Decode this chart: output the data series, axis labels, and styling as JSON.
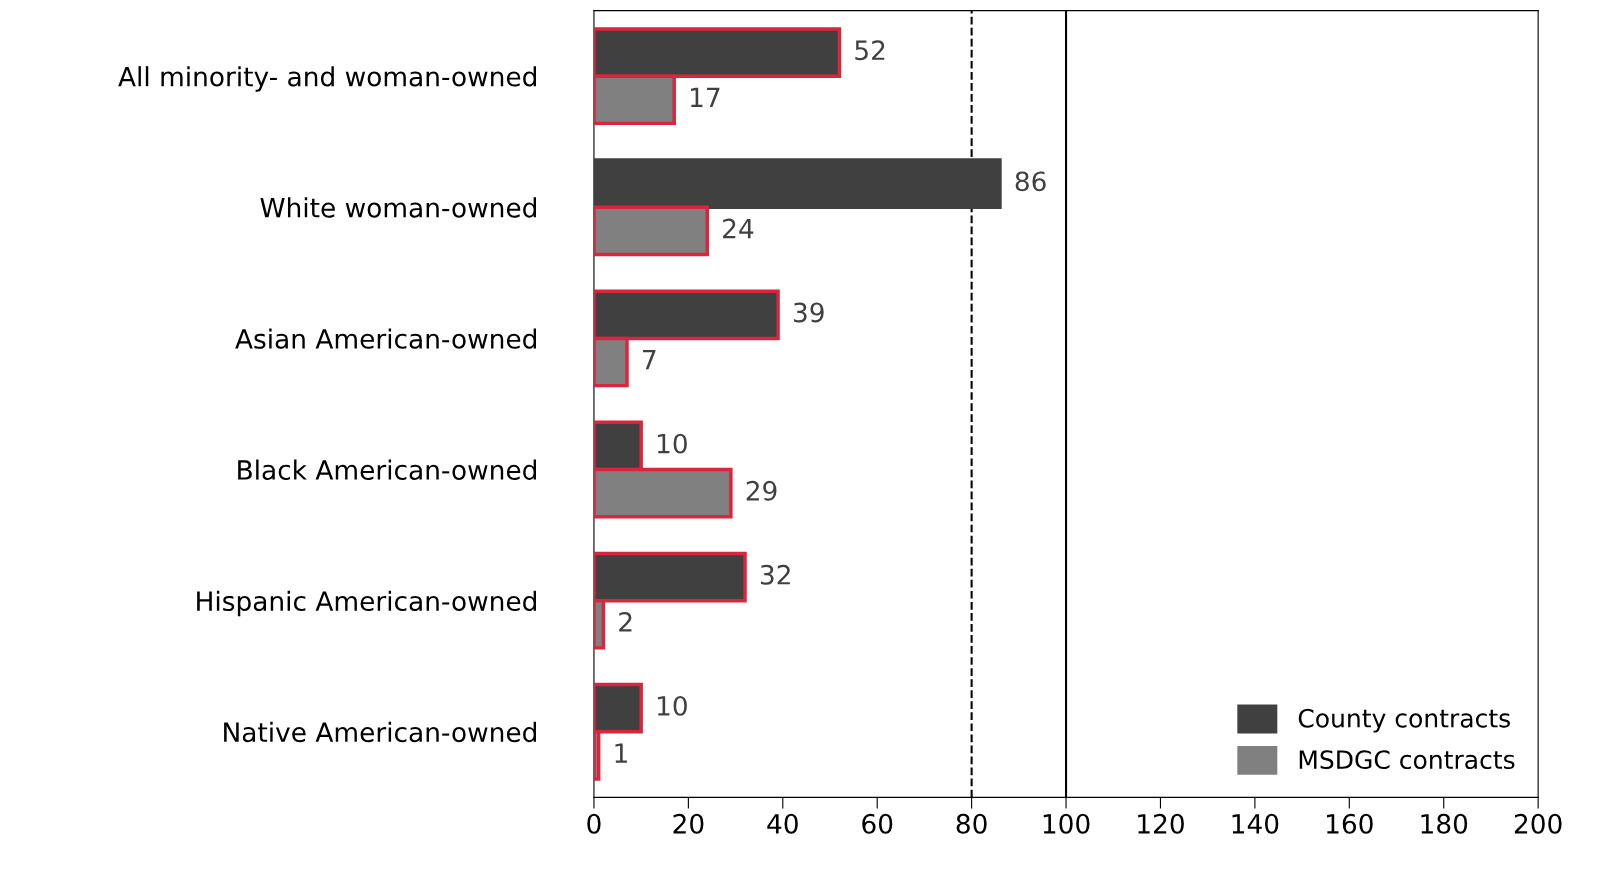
{
  "chart_data": {
    "type": "bar",
    "orientation": "horizontal",
    "categories": [
      "All minority- and woman-owned",
      "White woman-owned",
      "Asian American-owned",
      "Black American-owned",
      "Hispanic American-owned",
      "Native American-owned"
    ],
    "series": [
      {
        "name": "County contracts",
        "color": "#404040",
        "values": [
          52,
          86,
          39,
          10,
          32,
          10
        ]
      },
      {
        "name": "MSDGC contracts",
        "color": "#808080",
        "values": [
          17,
          24,
          7,
          29,
          2,
          1
        ]
      }
    ],
    "xlim": [
      0,
      200
    ],
    "xticks": [
      0,
      20,
      40,
      60,
      80,
      100,
      120,
      140,
      160,
      180,
      200
    ],
    "ref_lines": [
      {
        "axis": "x",
        "value": 80,
        "line_style": "dashed",
        "color": "#000000"
      },
      {
        "axis": "x",
        "value": 100,
        "line_style": "solid",
        "color": "#000000"
      }
    ],
    "data_labels": true,
    "grid": false,
    "legend": "bottom right"
  }
}
